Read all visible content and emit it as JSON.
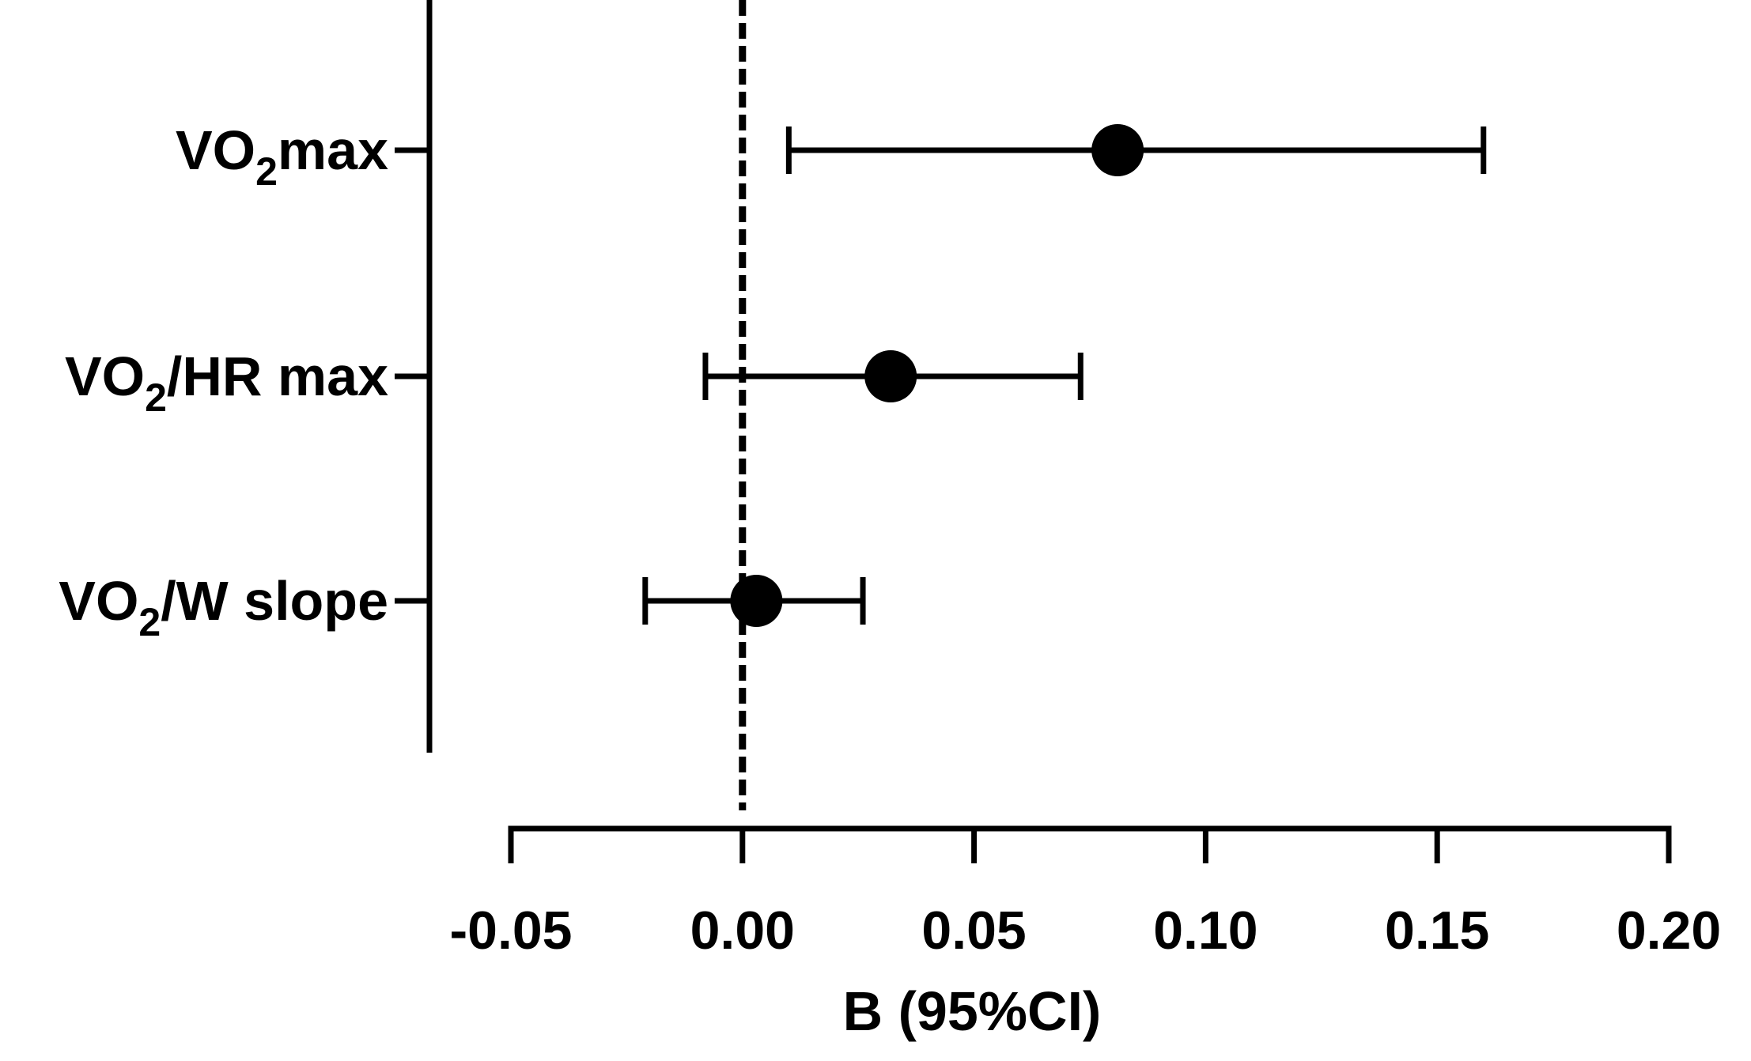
{
  "chart_data": {
    "type": "forest",
    "categories": [
      {
        "id": "vo2max",
        "prefix": "VO",
        "sub": "2",
        "suffix": "max",
        "estimate": 0.081,
        "ci_low": 0.01,
        "ci_high": 0.16
      },
      {
        "id": "vo2hr",
        "prefix": "VO",
        "sub": "2",
        "suffix": "/HR max",
        "estimate": 0.032,
        "ci_low": -0.008,
        "ci_high": 0.073
      },
      {
        "id": "vo2w",
        "prefix": "VO",
        "sub": "2",
        "suffix": "/W slope",
        "estimate": 0.003,
        "ci_low": -0.021,
        "ci_high": 0.026
      }
    ],
    "xlabel": "B (95%CI)",
    "xlim": [
      -0.05,
      0.2
    ],
    "xticks": [
      "-0.05",
      "0.00",
      "0.05",
      "0.10",
      "0.15",
      "0.20"
    ],
    "xtick_values": [
      -0.05,
      0.0,
      0.05,
      0.1,
      0.15,
      0.2
    ],
    "reference_line": 0.0,
    "grid": false,
    "colors": {
      "marker": "#000000",
      "line": "#000000"
    }
  }
}
